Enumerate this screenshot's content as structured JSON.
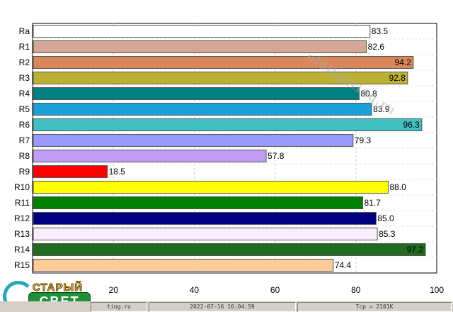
{
  "chart_data": {
    "type": "bar",
    "orientation": "horizontal",
    "categories": [
      "Ra",
      "R1",
      "R2",
      "R3",
      "R4",
      "R5",
      "R6",
      "R7",
      "R8",
      "R9",
      "R10",
      "R11",
      "R12",
      "R13",
      "R14",
      "R15"
    ],
    "values": [
      83.5,
      82.6,
      94.2,
      92.8,
      80.8,
      83.9,
      96.3,
      79.3,
      57.8,
      18.5,
      88.0,
      81.7,
      85.0,
      85.3,
      97.2,
      74.4
    ],
    "value_labels": [
      "83.5",
      "82.6",
      "94.2",
      "92.8",
      "80.8",
      "83.9",
      "96.3",
      "79.3",
      "57.8",
      "18.5",
      "88.0",
      "81.7",
      "85.0",
      "85.3",
      "97.2",
      "74.4"
    ],
    "colors": [
      "#ffffff",
      "#d4a895",
      "#d9875a",
      "#bcb033",
      "#008080",
      "#1a9fd6",
      "#40c0c0",
      "#9999ff",
      "#c39cf5",
      "#ff0000",
      "#ffff00",
      "#008000",
      "#000080",
      "#f8eeff",
      "#216b21",
      "#ffcc99"
    ],
    "xlim": [
      0,
      100
    ],
    "xticks": [
      20,
      40,
      60,
      80,
      100
    ],
    "grid": true
  },
  "status": {
    "site": "ting.ru",
    "datetime": "2022-07-16 16:04:59",
    "tcp": "Tcp = 2101K"
  },
  "watermark": "oldlighting.ru",
  "logo": {
    "top": "СТАРЫЙ",
    "bottom": "СВЕТ"
  }
}
